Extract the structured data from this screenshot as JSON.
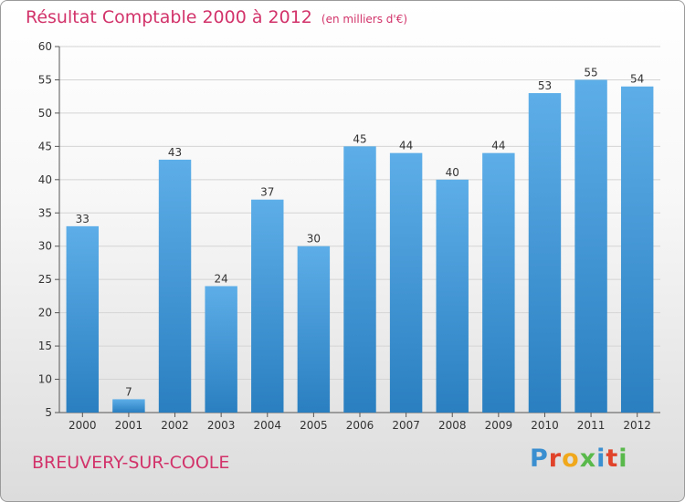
{
  "header": {
    "title": "Résultat Comptable 2000 à 2012",
    "subtitle": "(en milliers d'€)"
  },
  "footer": {
    "place_name": "BREUVERY-SUR-COOLE",
    "logo_text": "Proxiti"
  },
  "colors": {
    "title": "#d2336a",
    "bar_top": "#5daee8",
    "bar_bottom": "#2a7fc0",
    "logo_letters": [
      "#3a8fd0",
      "#e0432a",
      "#f0a81c",
      "#59b94b",
      "#3a8fd0",
      "#e0432a",
      "#59b94b"
    ]
  },
  "chart_data": {
    "type": "bar",
    "categories": [
      "2000",
      "2001",
      "2002",
      "2003",
      "2004",
      "2005",
      "2006",
      "2007",
      "2008",
      "2009",
      "2010",
      "2011",
      "2012"
    ],
    "values": [
      33,
      7,
      43,
      24,
      37,
      30,
      45,
      44,
      40,
      44,
      53,
      55,
      54
    ],
    "title": "Résultat Comptable 2000 à 2012",
    "subtitle": "(en milliers d'€)",
    "xlabel": "",
    "ylabel": "",
    "ylim": [
      5,
      60
    ],
    "yticks": [
      5,
      10,
      15,
      20,
      25,
      30,
      35,
      40,
      45,
      50,
      55,
      60
    ],
    "grid": true,
    "data_labels": true
  }
}
